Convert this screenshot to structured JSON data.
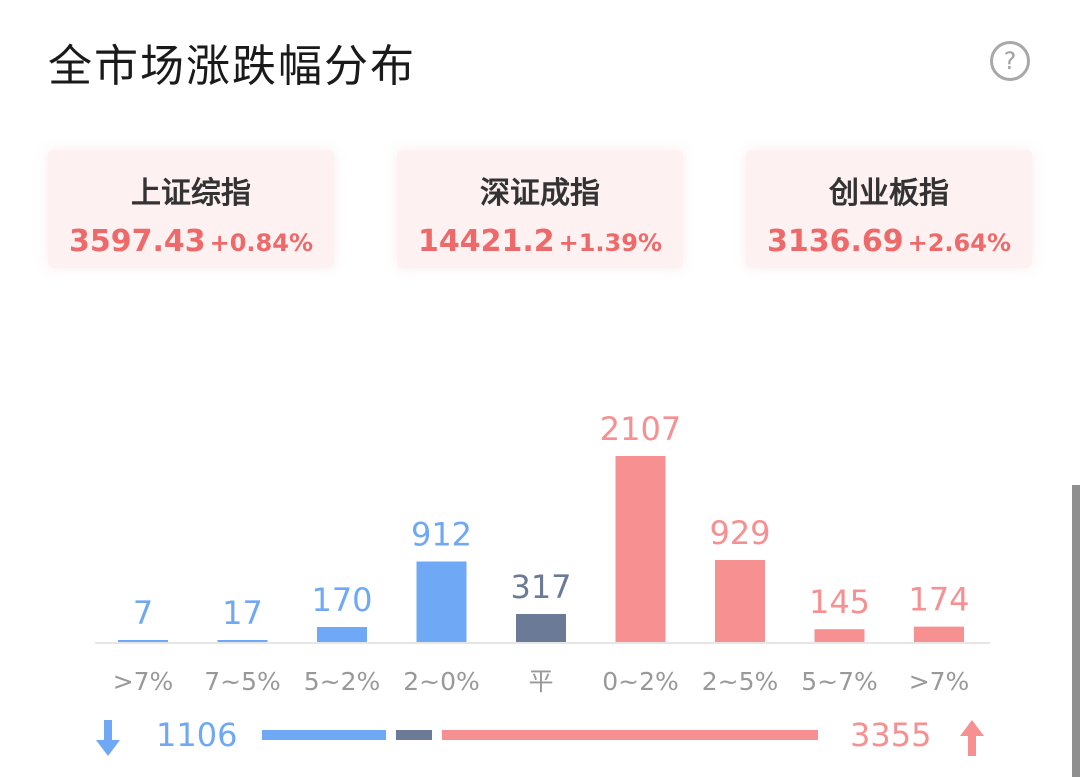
{
  "title": "全市场涨跌幅分布",
  "help_icon": "question-circle-icon",
  "indices": [
    {
      "name": "上证综指",
      "value": "3597.43",
      "change": "+0.84%"
    },
    {
      "name": "深证成指",
      "value": "14421.2",
      "change": "+1.39%"
    },
    {
      "name": "创业板指",
      "value": "3136.69",
      "change": "+2.64%"
    }
  ],
  "colors": {
    "down": "#6fa8f5",
    "flat": "#6b7a96",
    "up": "#f69091",
    "up_text": "#ee6a6a",
    "card_bg": "#fdf1f1"
  },
  "chart_data": {
    "type": "bar",
    "categories": [
      ">7%",
      "7~5%",
      "5~2%",
      "2~0%",
      "平",
      "0~2%",
      "2~5%",
      "5~7%",
      ">7%"
    ],
    "values": [
      7,
      17,
      170,
      912,
      317,
      2107,
      929,
      145,
      174
    ],
    "bar_groups": [
      "down",
      "down",
      "down",
      "down",
      "flat",
      "up",
      "up",
      "up",
      "up"
    ],
    "ylim": [
      0,
      2107
    ]
  },
  "summary": {
    "down_count": "1106",
    "up_count": "3355",
    "down_icon": "arrow-down-icon",
    "up_icon": "arrow-up-icon",
    "down_total": 1106,
    "flat_total": 317,
    "up_total": 3355
  }
}
